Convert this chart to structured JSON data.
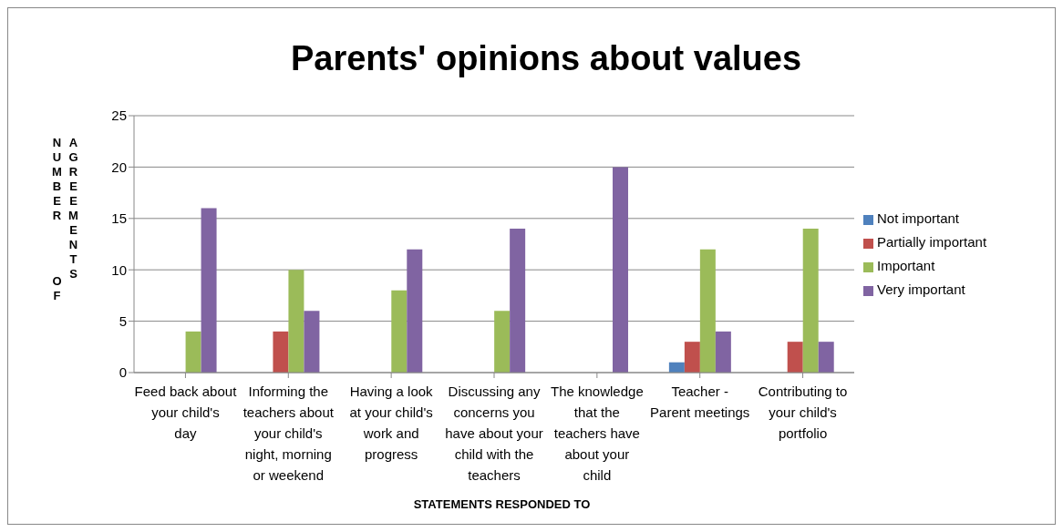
{
  "chart_data": {
    "type": "bar",
    "title": "Parents' opinions about values",
    "xlabel": "STATEMENTS RESPONDED TO",
    "ylabel": "NUMBER OF AGREEMENTS",
    "categories": [
      "Feed back about your child's day",
      "Informing the teachers about your child's night, morning or weekend",
      "Having a look at your child's work and progress",
      "Discussing any concerns you have about your child with the teachers",
      "The knowledge that the teachers have about your child",
      "Teacher - Parent meetings",
      "Contributing to your child's portfolio"
    ],
    "series": [
      {
        "name": "Not important",
        "color": "#4f81bd",
        "values": [
          0,
          0,
          0,
          0,
          0,
          1,
          0
        ]
      },
      {
        "name": "Partially important",
        "color": "#c0504d",
        "values": [
          0,
          4,
          0,
          0,
          0,
          3,
          3
        ]
      },
      {
        "name": "Important",
        "color": "#9bbb59",
        "values": [
          4,
          10,
          8,
          6,
          0,
          12,
          14
        ]
      },
      {
        "name": "Very important",
        "color": "#8064a2",
        "values": [
          16,
          6,
          12,
          14,
          20,
          4,
          3
        ]
      }
    ],
    "ylim": [
      0,
      25
    ],
    "yticks": [
      0,
      5,
      10,
      15,
      20,
      25
    ],
    "grid": "y",
    "legend": "right"
  }
}
